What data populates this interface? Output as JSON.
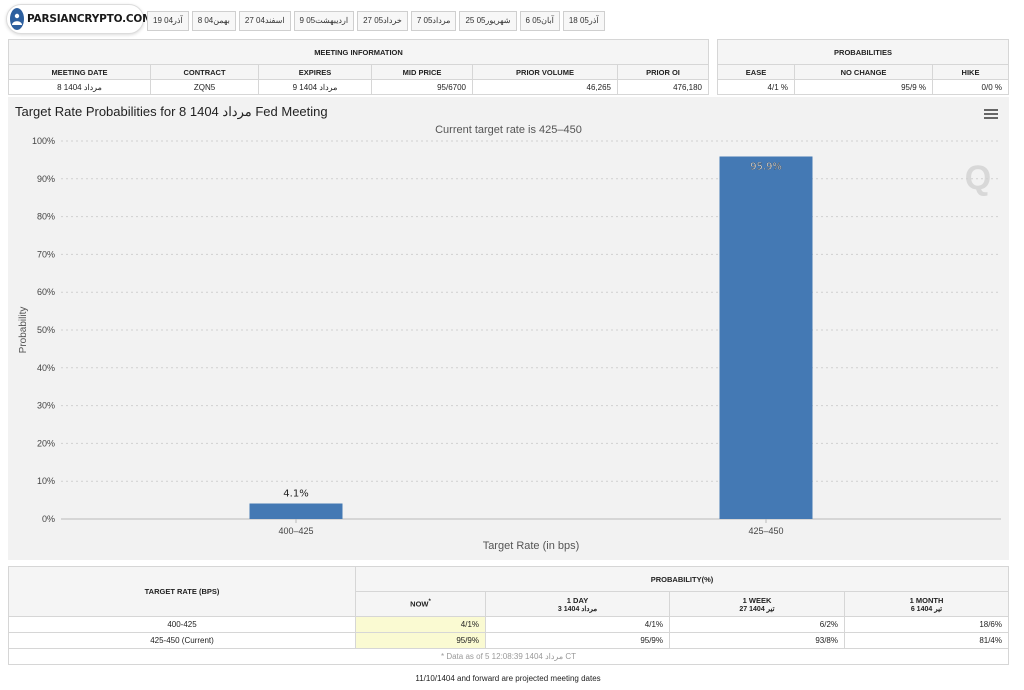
{
  "logo": {
    "text": "PARSIANCRYPTO.COM"
  },
  "tabs": [
    "19 آذر04",
    "8 بهمن04",
    "27 اسفند04",
    "9 اردیبهشت05",
    "27 خرداد05",
    "7 مرداد05",
    "25 شهریور05",
    "6 آبان05",
    "18 آذر05"
  ],
  "meeting_info": {
    "section_title": "MEETING INFORMATION",
    "headers": [
      "MEETING DATE",
      "CONTRACT",
      "EXPIRES",
      "MID PRICE",
      "PRIOR VOLUME",
      "PRIOR OI"
    ],
    "row": [
      "8 1404 مرداد",
      "ZQN5",
      "9 1404 مرداد",
      "95/6700",
      "46,265",
      "476,180"
    ]
  },
  "probabilities": {
    "section_title": "PROBABILITIES",
    "headers": [
      "EASE",
      "NO CHANGE",
      "HIKE"
    ],
    "row": [
      "4/1 %",
      "95/9 %",
      "0/0 %"
    ]
  },
  "chart_header": {
    "title": "Target Rate Probabilities for 8 1404 مرداد Fed Meeting",
    "subtitle": "Current target rate is 425–450",
    "menu_icon": "hamburger-menu-icon"
  },
  "chart_data": {
    "type": "bar",
    "categories": [
      "400–425",
      "425–450"
    ],
    "values": [
      4.1,
      95.9
    ],
    "data_labels": [
      "4.1%",
      "95.9%"
    ],
    "xlabel": "Target Rate (in bps)",
    "ylabel": "Probability",
    "ylim": [
      0,
      100
    ],
    "yticks": [
      "0%",
      "10%",
      "20%",
      "30%",
      "40%",
      "50%",
      "60%",
      "70%",
      "80%",
      "90%",
      "100%"
    ],
    "grid": true,
    "bar_color": "#4479b4",
    "watermark": "Q"
  },
  "prob_table": {
    "col_header": "TARGET RATE (BPS)",
    "group_header": "PROBABILITY(%)",
    "subheaders": [
      {
        "label": "NOW",
        "sup": "*",
        "date": ""
      },
      {
        "label": "1 DAY",
        "sup": "",
        "date": "3 1404 مرداد"
      },
      {
        "label": "1 WEEK",
        "sup": "",
        "date": "27 1404 تیر"
      },
      {
        "label": "1 MONTH",
        "sup": "",
        "date": "6 1404 تیر"
      }
    ],
    "rows": [
      {
        "rate": "400-425",
        "values": [
          "4/1%",
          "4/1%",
          "6/2%",
          "18/6%"
        ]
      },
      {
        "rate": "425-450 (Current)",
        "values": [
          "95/9%",
          "95/9%",
          "93/8%",
          "81/4%"
        ]
      }
    ],
    "note": "* Data as of 5 12:08:39 1404 مرداد CT"
  },
  "footer_note": "11/10/1404 and forward are projected meeting dates"
}
